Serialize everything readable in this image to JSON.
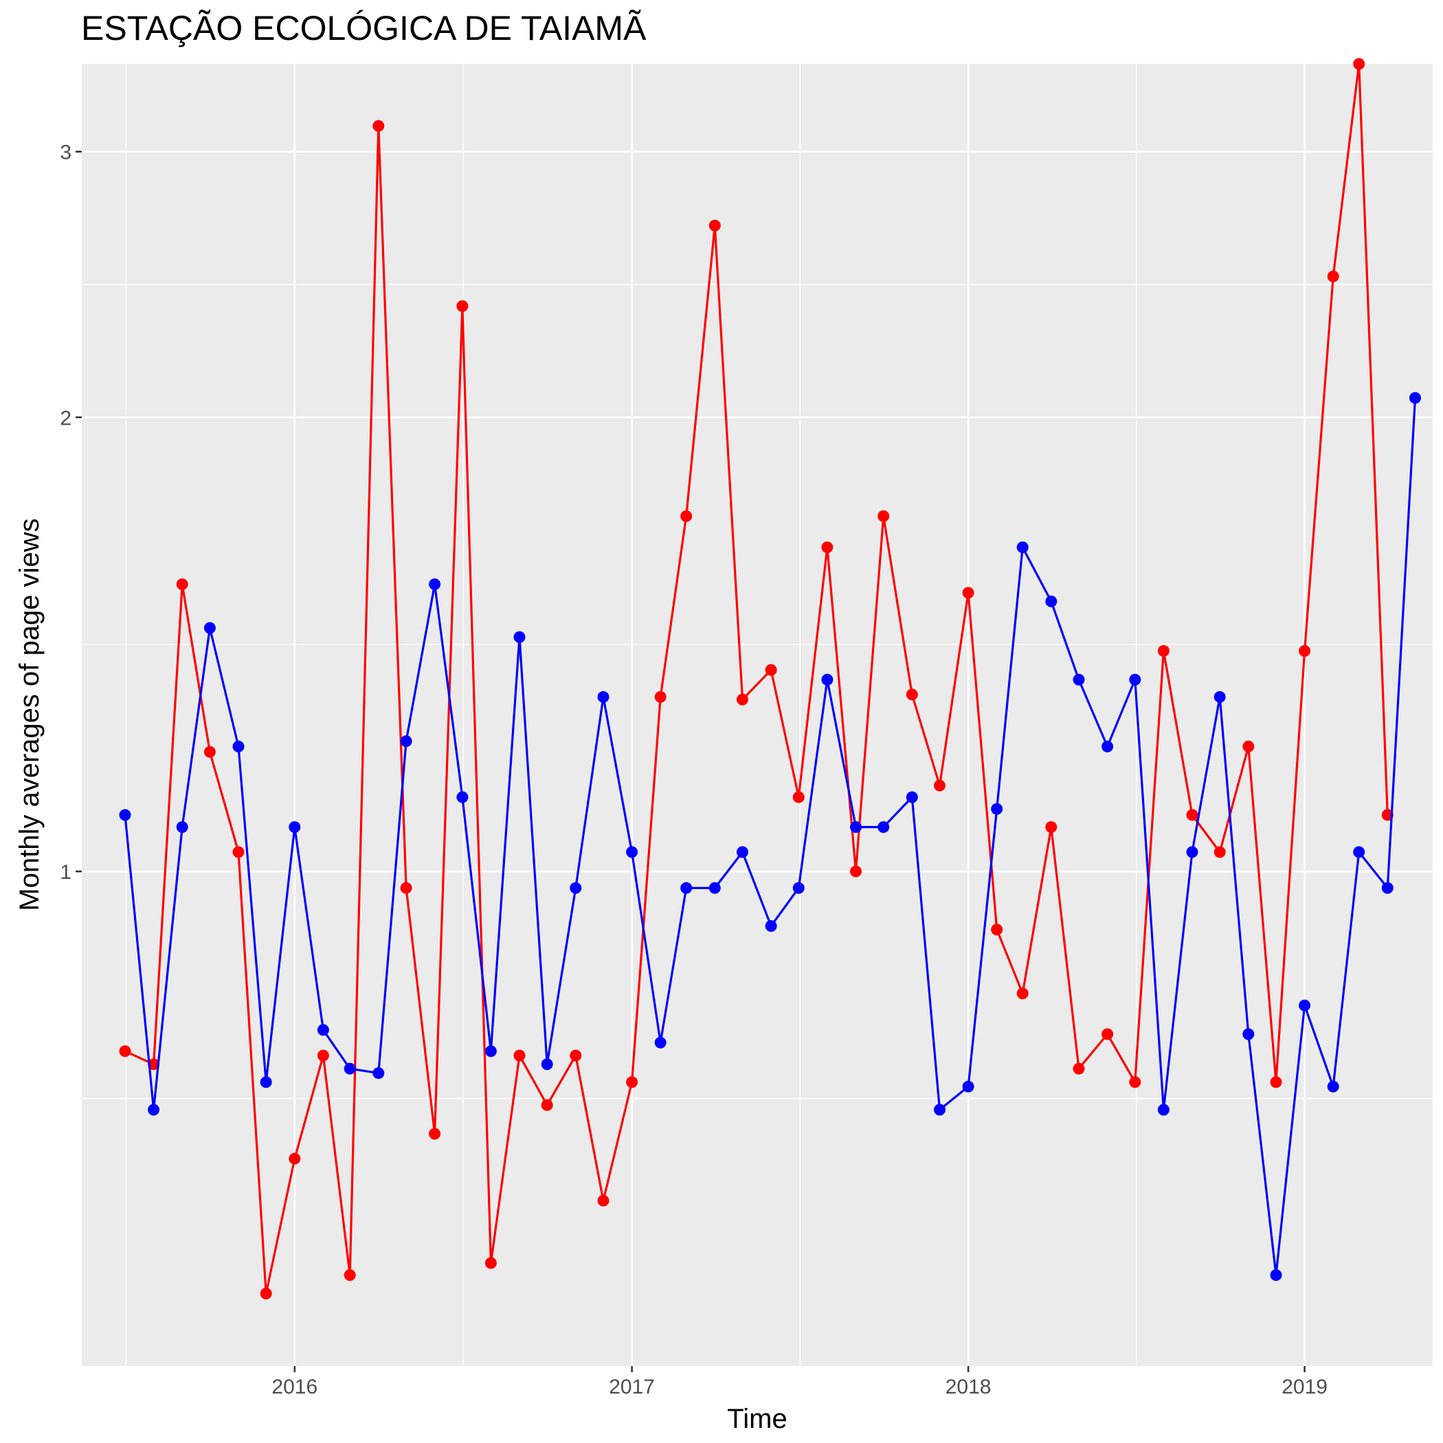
{
  "chart_data": {
    "type": "line",
    "title": "ESTAÇÃO ECOLÓGICA DE TAIAMÃ",
    "xlabel": "Time",
    "ylabel": "Monthly averages of page views",
    "y_scale": "log",
    "xlim": [
      "2015-05-15",
      "2019-05-20"
    ],
    "ylim": [
      0.47,
      3.43
    ],
    "x_ticks": [
      {
        "value": "2016-01-01",
        "label": "2016"
      },
      {
        "value": "2017-01-01",
        "label": "2017"
      },
      {
        "value": "2018-01-01",
        "label": "2018"
      },
      {
        "value": "2019-01-01",
        "label": "2019"
      }
    ],
    "y_ticks": [
      {
        "value": 1,
        "label": "1"
      },
      {
        "value": 2,
        "label": "2"
      },
      {
        "value": 3,
        "label": "3"
      }
    ],
    "grid": true,
    "legend": "none",
    "x": [
      "2015-07",
      "2015-08",
      "2015-09",
      "2015-10",
      "2015-11",
      "2015-12",
      "2016-01",
      "2016-02",
      "2016-03",
      "2016-04",
      "2016-05",
      "2016-06",
      "2016-07",
      "2016-08",
      "2016-09",
      "2016-10",
      "2016-11",
      "2016-12",
      "2017-01",
      "2017-02",
      "2017-03",
      "2017-04",
      "2017-05",
      "2017-06",
      "2017-07",
      "2017-08",
      "2017-09",
      "2017-10",
      "2017-11",
      "2017-12",
      "2018-01",
      "2018-02",
      "2018-03",
      "2018-04",
      "2018-05",
      "2018-06",
      "2018-07",
      "2018-08",
      "2018-09",
      "2018-10",
      "2018-11",
      "2018-12",
      "2019-01",
      "2019-02",
      "2019-03",
      "2019-04",
      "2019-05"
    ],
    "series": [
      {
        "color": "#ff0000",
        "values": [
          0.76,
          0.745,
          1.55,
          1.2,
          1.03,
          0.525,
          0.645,
          0.755,
          0.54,
          3.12,
          0.975,
          0.67,
          2.37,
          0.55,
          0.755,
          0.7,
          0.755,
          0.605,
          0.725,
          1.305,
          1.72,
          2.68,
          1.3,
          1.36,
          1.12,
          1.64,
          1.0,
          1.72,
          1.31,
          1.14,
          1.53,
          0.915,
          0.83,
          1.07,
          0.74,
          0.78,
          0.725,
          1.4,
          1.09,
          1.03,
          1.21,
          0.725,
          1.4,
          2.48,
          3.43,
          1.09,
          null
        ]
      },
      {
        "color": "#0000ff",
        "values": [
          1.09,
          0.695,
          1.07,
          1.45,
          1.21,
          0.725,
          1.07,
          0.785,
          0.74,
          0.735,
          1.22,
          1.55,
          1.12,
          0.76,
          1.43,
          0.745,
          0.975,
          1.305,
          1.03,
          0.77,
          0.975,
          0.975,
          1.03,
          0.92,
          0.975,
          1.34,
          1.07,
          1.07,
          1.12,
          0.695,
          0.72,
          1.1,
          1.64,
          1.51,
          1.34,
          1.21,
          1.34,
          0.695,
          1.03,
          1.305,
          0.78,
          0.54,
          0.815,
          0.72,
          1.03,
          0.975,
          2.06
        ]
      }
    ]
  }
}
